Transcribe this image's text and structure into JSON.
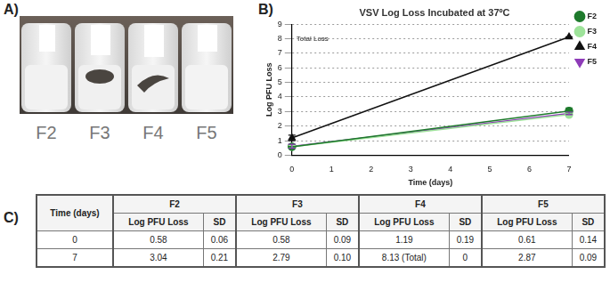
{
  "panel_labels": [
    "A)",
    "B)",
    "C)"
  ],
  "photo": {
    "labels": [
      "F2",
      "F3",
      "F4",
      "F5"
    ]
  },
  "chart_data": {
    "type": "line",
    "title": "VSV Log Loss Incubated at 37ºC",
    "x_label": "Time (days)",
    "y_label": "Log PFU Loss",
    "x": [
      0,
      7
    ],
    "xlim": [
      0,
      7
    ],
    "xticks": [
      0,
      1,
      2,
      3,
      4,
      5,
      6,
      7
    ],
    "ylim": [
      0,
      9
    ],
    "yticks": [
      0,
      1,
      2,
      3,
      4,
      5,
      6,
      7,
      8,
      9
    ],
    "grid": true,
    "legend": "right",
    "annotations": [
      "Total Loss"
    ],
    "series": [
      {
        "name": "F2",
        "color": "#1e7a2c",
        "marker": "circle",
        "values": [
          0.58,
          3.04
        ],
        "errors": [
          0.06,
          0.21
        ]
      },
      {
        "name": "F3",
        "color": "#9ee39a",
        "marker": "circle",
        "values": [
          0.58,
          2.79
        ],
        "errors": [
          0.09,
          0.1
        ]
      },
      {
        "name": "F4",
        "color": "#111111",
        "marker": "triangle",
        "values": [
          1.19,
          8.13
        ],
        "errors": [
          0.19,
          0
        ]
      },
      {
        "name": "F5",
        "color": "#8e3bb8",
        "marker": "triangle-down",
        "values": [
          0.61,
          2.87
        ],
        "errors": [
          0.14,
          0.09
        ]
      }
    ]
  },
  "table": {
    "header": [
      "Time (days)",
      "F2",
      "F3",
      "F4",
      "F5"
    ],
    "subheader": [
      "Log PFU Loss",
      "SD"
    ],
    "rows": [
      [
        "0",
        "0.58",
        "0.06",
        "0.58",
        "0.09",
        "1.19",
        "0.19",
        "0.61",
        "0.14"
      ],
      [
        "7",
        "3.04",
        "0.21",
        "2.79",
        "0.10",
        "8.13 (Total)",
        "0",
        "2.87",
        "0.09"
      ]
    ]
  }
}
